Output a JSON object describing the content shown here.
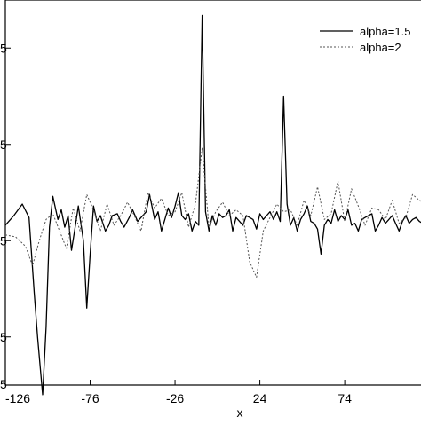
{
  "chart_data": {
    "type": "line",
    "title": "",
    "xlabel": "x",
    "ylabel": "",
    "xlim": [
      -126,
      120
    ],
    "ylim": [
      -0.5,
      1.5
    ],
    "grid": false,
    "legend_position": "top-right",
    "x_ticks": [
      {
        "value": -126,
        "label": "-126"
      },
      {
        "value": -76,
        "label": "-76"
      },
      {
        "value": -26,
        "label": "-26"
      },
      {
        "value": 24,
        "label": "24"
      },
      {
        "value": 74,
        "label": "74"
      }
    ],
    "y_ticks": [
      {
        "value": 1.25,
        "label": "5"
      },
      {
        "value": 0.75,
        "label": "5"
      },
      {
        "value": 0.25,
        "label": "5"
      },
      {
        "value": -0.25,
        "label": "5"
      },
      {
        "value": -0.5,
        "label": "5"
      }
    ],
    "series": [
      {
        "name": "alpha=1.5",
        "style": "solid",
        "color": "#000000",
        "x": [
          -126,
          -121,
          -116,
          -112,
          -109,
          -107,
          -104,
          -102,
          -100,
          -98,
          -95,
          -93,
          -91,
          -89,
          -87,
          -85,
          -83,
          -80,
          -78,
          -76,
          -74,
          -72,
          -70,
          -67,
          -65,
          -63,
          -60,
          -58,
          -56,
          -53,
          -51,
          -48,
          -46,
          -43,
          -41,
          -38,
          -36,
          -34,
          -32,
          -30,
          -28,
          -26,
          -24,
          -22,
          -20,
          -18,
          -16,
          -14,
          -12,
          -10,
          -8,
          -6,
          -4,
          -2,
          0,
          2,
          4,
          6,
          8,
          10,
          12,
          14,
          16,
          18,
          20,
          22,
          24,
          26,
          28,
          30,
          32,
          34,
          36,
          38,
          40,
          42,
          44,
          46,
          48,
          50,
          52,
          54,
          56,
          58,
          60,
          62,
          64,
          66,
          68,
          70,
          72,
          74,
          76,
          78,
          80,
          82,
          84,
          86,
          88,
          90,
          92,
          94,
          96,
          98,
          100,
          102,
          104,
          106,
          108,
          110,
          112,
          114,
          116,
          118,
          120
        ],
        "y": [
          0.33,
          0.38,
          0.44,
          0.37,
          -0.02,
          -0.25,
          -0.55,
          -0.2,
          0.32,
          0.48,
          0.36,
          0.41,
          0.32,
          0.38,
          0.2,
          0.31,
          0.43,
          0.25,
          -0.1,
          0.18,
          0.43,
          0.35,
          0.38,
          0.3,
          0.33,
          0.38,
          0.39,
          0.35,
          0.32,
          0.37,
          0.41,
          0.35,
          0.37,
          0.4,
          0.49,
          0.36,
          0.4,
          0.3,
          0.36,
          0.42,
          0.37,
          0.43,
          0.5,
          0.38,
          0.36,
          0.39,
          0.3,
          0.35,
          0.33,
          1.42,
          0.4,
          0.3,
          0.38,
          0.33,
          0.39,
          0.37,
          0.38,
          0.41,
          0.3,
          0.37,
          0.35,
          0.33,
          0.38,
          0.37,
          0.36,
          0.31,
          0.39,
          0.36,
          0.38,
          0.4,
          0.36,
          0.4,
          0.35,
          1.0,
          0.44,
          0.33,
          0.37,
          0.3,
          0.36,
          0.39,
          0.43,
          0.35,
          0.34,
          0.31,
          0.18,
          0.33,
          0.36,
          0.34,
          0.41,
          0.35,
          0.38,
          0.36,
          0.41,
          0.33,
          0.34,
          0.3,
          0.36,
          0.37,
          0.38,
          0.39,
          0.3,
          0.33,
          0.37,
          0.34,
          0.36,
          0.38,
          0.34,
          0.3,
          0.35,
          0.38,
          0.34,
          0.36,
          0.37,
          0.35,
          0.34
        ],
        "annotations": []
      },
      {
        "name": "alpha=2",
        "style": "dashed",
        "color": "#555555",
        "x": [
          -126,
          -120,
          -114,
          -110,
          -106,
          -102,
          -98,
          -94,
          -90,
          -86,
          -82,
          -78,
          -74,
          -70,
          -66,
          -62,
          -58,
          -54,
          -50,
          -46,
          -42,
          -38,
          -34,
          -30,
          -26,
          -22,
          -18,
          -14,
          -10,
          -6,
          -2,
          2,
          6,
          10,
          14,
          18,
          22,
          26,
          30,
          34,
          38,
          42,
          46,
          50,
          54,
          58,
          62,
          66,
          70,
          74,
          78,
          82,
          86,
          90,
          94,
          98,
          102,
          106,
          110,
          114,
          118,
          120
        ],
        "y": [
          0.28,
          0.27,
          0.22,
          0.12,
          0.25,
          0.36,
          0.39,
          0.3,
          0.21,
          0.42,
          0.3,
          0.49,
          0.41,
          0.3,
          0.44,
          0.33,
          0.38,
          0.45,
          0.38,
          0.3,
          0.5,
          0.42,
          0.47,
          0.38,
          0.4,
          0.5,
          0.32,
          0.44,
          0.73,
          0.32,
          0.4,
          0.45,
          0.38,
          0.41,
          0.38,
          0.14,
          0.06,
          0.3,
          0.37,
          0.44,
          0.4,
          0.41,
          0.33,
          0.46,
          0.38,
          0.53,
          0.36,
          0.39,
          0.56,
          0.35,
          0.52,
          0.43,
          0.33,
          0.42,
          0.41,
          0.36,
          0.46,
          0.34,
          0.37,
          0.49,
          0.46,
          0.45
        ],
        "annotations": []
      }
    ]
  }
}
